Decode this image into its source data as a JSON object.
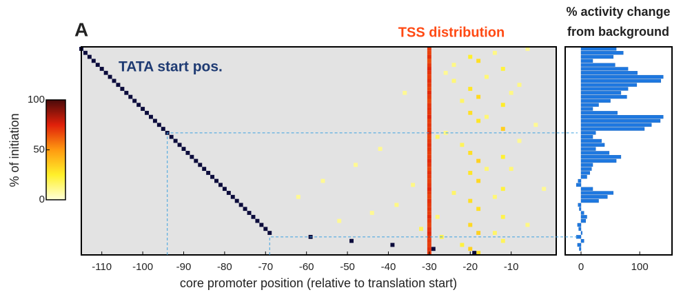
{
  "chart_data": {
    "type": "heatmap",
    "panel_label": "A",
    "title": "TSS distribution",
    "annotation": "TATA start pos.",
    "xlabel": "core promoter position (relative to translation start)",
    "xlim": [
      -115,
      1
    ],
    "xticks": [
      -110,
      -100,
      -90,
      -80,
      -70,
      -60,
      -50,
      -40,
      -30,
      -20,
      -10
    ],
    "tata_color": "#0c0c3c",
    "background": "#e3e3e3",
    "tata_start": [
      -115,
      -114,
      -113,
      -112,
      -111,
      -110,
      -109,
      -108,
      -107,
      -106,
      -105,
      -104,
      -103,
      -102,
      -101,
      -100,
      -99,
      -98,
      -97,
      -96,
      -95,
      -94,
      -93,
      -92,
      -91,
      -90,
      -89,
      -88,
      -87,
      -86,
      -85,
      -84,
      -83,
      -82,
      -81,
      -80,
      -79,
      -78,
      -77,
      -76,
      -75,
      -74,
      -73,
      -72,
      -71,
      -70,
      -69,
      -59,
      -49,
      -39,
      -29,
      -19
    ],
    "tss_column": {
      "pos": -30,
      "values": [
        70,
        68,
        72,
        66,
        70,
        74,
        71,
        69,
        72,
        70,
        68,
        73,
        70,
        67,
        71,
        72,
        70,
        74,
        69,
        71,
        70,
        73,
        68,
        70,
        72,
        71,
        69,
        70,
        73,
        71,
        68,
        72,
        70,
        69,
        71,
        74,
        70,
        68,
        72,
        70,
        71,
        69,
        73,
        70,
        68,
        72,
        74,
        71,
        70,
        69,
        72,
        70
      ]
    },
    "tss_cells": [
      [
        -20,
        2,
        25
      ],
      [
        -18,
        3,
        30
      ],
      [
        -12,
        5,
        22
      ],
      [
        -14,
        1,
        12
      ],
      [
        -6,
        0,
        10
      ],
      [
        -24,
        8,
        14
      ],
      [
        -20,
        10,
        28
      ],
      [
        -18,
        12,
        32
      ],
      [
        -12,
        14,
        26
      ],
      [
        -8,
        9,
        12
      ],
      [
        -26,
        6,
        10
      ],
      [
        -36,
        11,
        10
      ],
      [
        -20,
        16,
        30
      ],
      [
        -18,
        18,
        28
      ],
      [
        -12,
        20,
        35
      ],
      [
        -4,
        19,
        10
      ],
      [
        -28,
        22,
        16
      ],
      [
        -22,
        24,
        18
      ],
      [
        -20,
        26,
        30
      ],
      [
        -18,
        28,
        34
      ],
      [
        -12,
        27,
        24
      ],
      [
        -42,
        25,
        10
      ],
      [
        -48,
        29,
        10
      ],
      [
        -20,
        31,
        28
      ],
      [
        -18,
        33,
        32
      ],
      [
        -12,
        35,
        22
      ],
      [
        -16,
        30,
        14
      ],
      [
        -34,
        34,
        12
      ],
      [
        -24,
        36,
        16
      ],
      [
        -20,
        38,
        30
      ],
      [
        -18,
        40,
        30
      ],
      [
        -12,
        42,
        20
      ],
      [
        -6,
        44,
        12
      ],
      [
        -38,
        39,
        12
      ],
      [
        -44,
        41,
        10
      ],
      [
        -20,
        44,
        32
      ],
      [
        -18,
        46,
        34
      ],
      [
        -12,
        48,
        18
      ],
      [
        -32,
        45,
        18
      ],
      [
        -27,
        47,
        20
      ],
      [
        -22,
        49,
        22
      ],
      [
        -20,
        50,
        34
      ],
      [
        -18,
        51,
        30
      ],
      [
        -56,
        33,
        10
      ],
      [
        -62,
        37,
        10
      ],
      [
        -52,
        43,
        10
      ],
      [
        -10,
        30,
        14
      ],
      [
        -14,
        46,
        16
      ],
      [
        -2,
        35,
        10
      ],
      [
        -24,
        4,
        12
      ],
      [
        -16,
        7,
        14
      ],
      [
        -10,
        11,
        12
      ],
      [
        -22,
        13,
        16
      ],
      [
        -16,
        17,
        14
      ],
      [
        -26,
        21,
        12
      ],
      [
        -8,
        23,
        10
      ],
      [
        -14,
        37,
        14
      ],
      [
        -28,
        42,
        14
      ]
    ],
    "colorbar": {
      "label": "% of initiation",
      "lim": [
        0,
        100
      ],
      "ticks": [
        0,
        50,
        100
      ]
    },
    "activity": {
      "title": [
        "% activity change",
        "from background"
      ],
      "color": "#1e78e0",
      "xlim": [
        -27,
        155
      ],
      "xticks": [
        0,
        100
      ],
      "values": [
        60,
        72,
        55,
        20,
        58,
        80,
        96,
        140,
        136,
        95,
        80,
        68,
        78,
        50,
        30,
        20,
        62,
        140,
        135,
        120,
        108,
        25,
        20,
        35,
        40,
        25,
        48,
        68,
        60,
        20,
        18,
        15,
        10,
        -5,
        -8,
        20,
        55,
        45,
        30,
        -5,
        -3,
        5,
        10,
        8,
        -6,
        -4,
        2,
        -8,
        5,
        -6,
        -3,
        0
      ]
    }
  }
}
